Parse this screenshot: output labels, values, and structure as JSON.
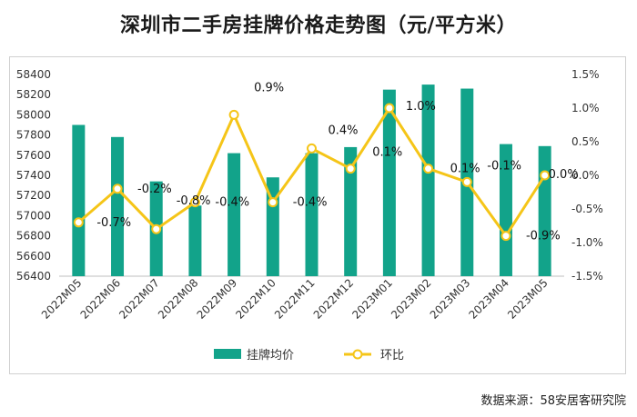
{
  "title": "深圳市二手房挂牌价格走势图（元/平方米）",
  "source": "数据来源：58安居客研究院",
  "colors": {
    "bar": "#12a38a",
    "line": "#f5c518",
    "point_fill": "#ffffff"
  },
  "chart_data": {
    "type": "bar+line",
    "categories": [
      "2022M05",
      "2022M06",
      "2022M07",
      "2022M08",
      "2022M09",
      "2022M10",
      "2022M11",
      "2022M12",
      "2023M01",
      "2023M02",
      "2023M03",
      "2023M04",
      "2023M05"
    ],
    "series": [
      {
        "name": "挂牌均价",
        "type": "bar",
        "axis": "left",
        "values": [
          57900,
          57780,
          57340,
          57100,
          57620,
          57380,
          57620,
          57680,
          58250,
          58300,
          58260,
          57710,
          57690
        ]
      },
      {
        "name": "环比",
        "type": "line",
        "axis": "right",
        "values": [
          -0.7,
          -0.2,
          -0.8,
          -0.4,
          0.9,
          -0.4,
          0.4,
          0.1,
          1.0,
          0.1,
          -0.1,
          -0.9,
          0.0
        ],
        "labels": [
          "-0.7%",
          "-0.2%",
          "-0.8%",
          "-0.4%",
          "0.9%",
          "-0.4%",
          "0.4%",
          "0.1%",
          "1.0%",
          "0.1%",
          "-0.1%",
          "-0.9%",
          "0.0%"
        ]
      }
    ],
    "y_left": {
      "min": 56400,
      "max": 58400,
      "ticks": [
        56400,
        56600,
        56800,
        57000,
        57200,
        57400,
        57600,
        57800,
        58000,
        58200,
        58400
      ]
    },
    "y_right": {
      "min": -1.5,
      "max": 1.5,
      "ticks": [
        "1.5%",
        "1.0%",
        "0.5%",
        "0.0%",
        "-0.5%",
        "-1.0%",
        "-1.5%"
      ],
      "tick_values": [
        1.5,
        1.0,
        0.5,
        0.0,
        -0.5,
        -1.0,
        -1.5
      ]
    },
    "legend": {
      "position": "bottom",
      "items": [
        "挂牌均价",
        "环比"
      ]
    },
    "grid": false
  }
}
